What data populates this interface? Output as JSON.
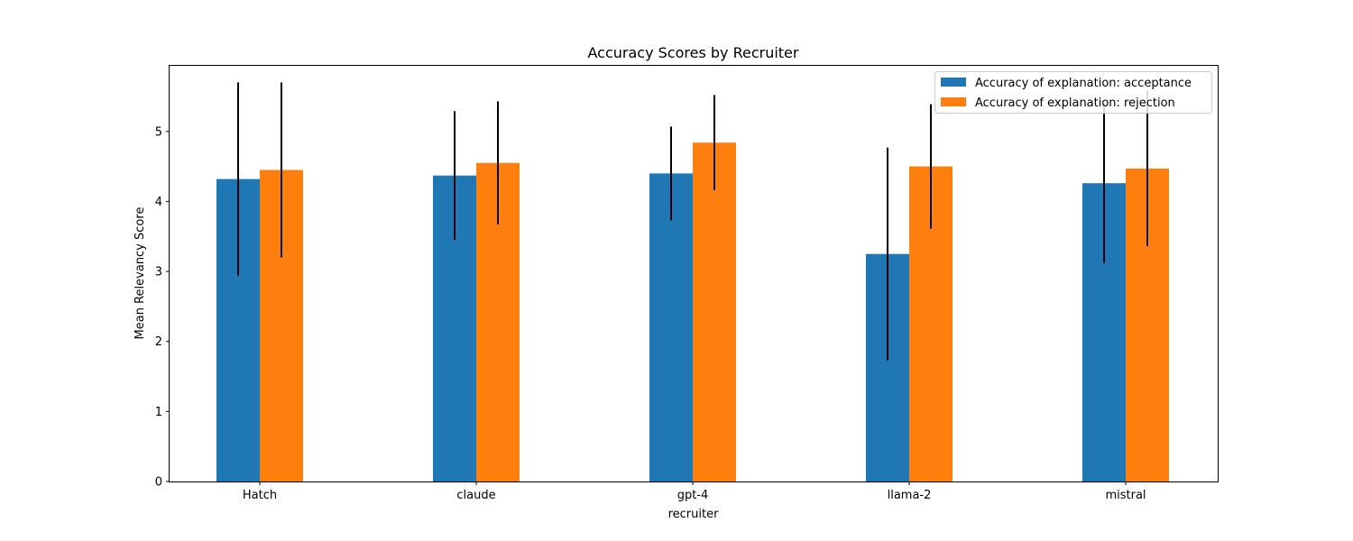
{
  "chart_data": {
    "type": "bar",
    "title": "Accuracy Scores by Recruiter",
    "xlabel": "recruiter",
    "ylabel": "Mean Relevancy Score",
    "categories": [
      "Hatch",
      "claude",
      "gpt-4",
      "llama-2",
      "mistral"
    ],
    "series": [
      {
        "name": "Accuracy of explanation: acceptance",
        "color": "#1f77b4",
        "values": [
          4.32,
          4.37,
          4.4,
          3.25,
          4.26
        ],
        "error": [
          1.38,
          0.92,
          0.67,
          1.52,
          1.14
        ]
      },
      {
        "name": "Accuracy of explanation: rejection",
        "color": "#ff7f0e",
        "values": [
          4.45,
          4.55,
          4.84,
          4.5,
          4.47
        ],
        "error": [
          1.25,
          0.88,
          0.68,
          0.89,
          1.11
        ]
      }
    ],
    "ylim": [
      0,
      5.95
    ],
    "yticks": [
      0,
      1,
      2,
      3,
      4,
      5
    ],
    "grid": false,
    "legend": "top-right",
    "error_bar_color": "#000000"
  }
}
